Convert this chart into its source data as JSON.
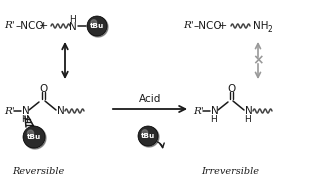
{
  "bg_color": "#ffffff",
  "text_color": "#1a1a1a",
  "gray_color": "#999999",
  "tbu_ball_color": "#2a2a2a",
  "tbu_ball_highlight": "#777777",
  "tbu_text_color": "#ffffff",
  "wavy_color": "#444444",
  "bond_color": "#1a1a1a",
  "label_reversible": "Reversible",
  "label_irreversible": "Irreversible",
  "acid_label": "Acid",
  "figw": 3.34,
  "figh": 1.89,
  "dpi": 100
}
